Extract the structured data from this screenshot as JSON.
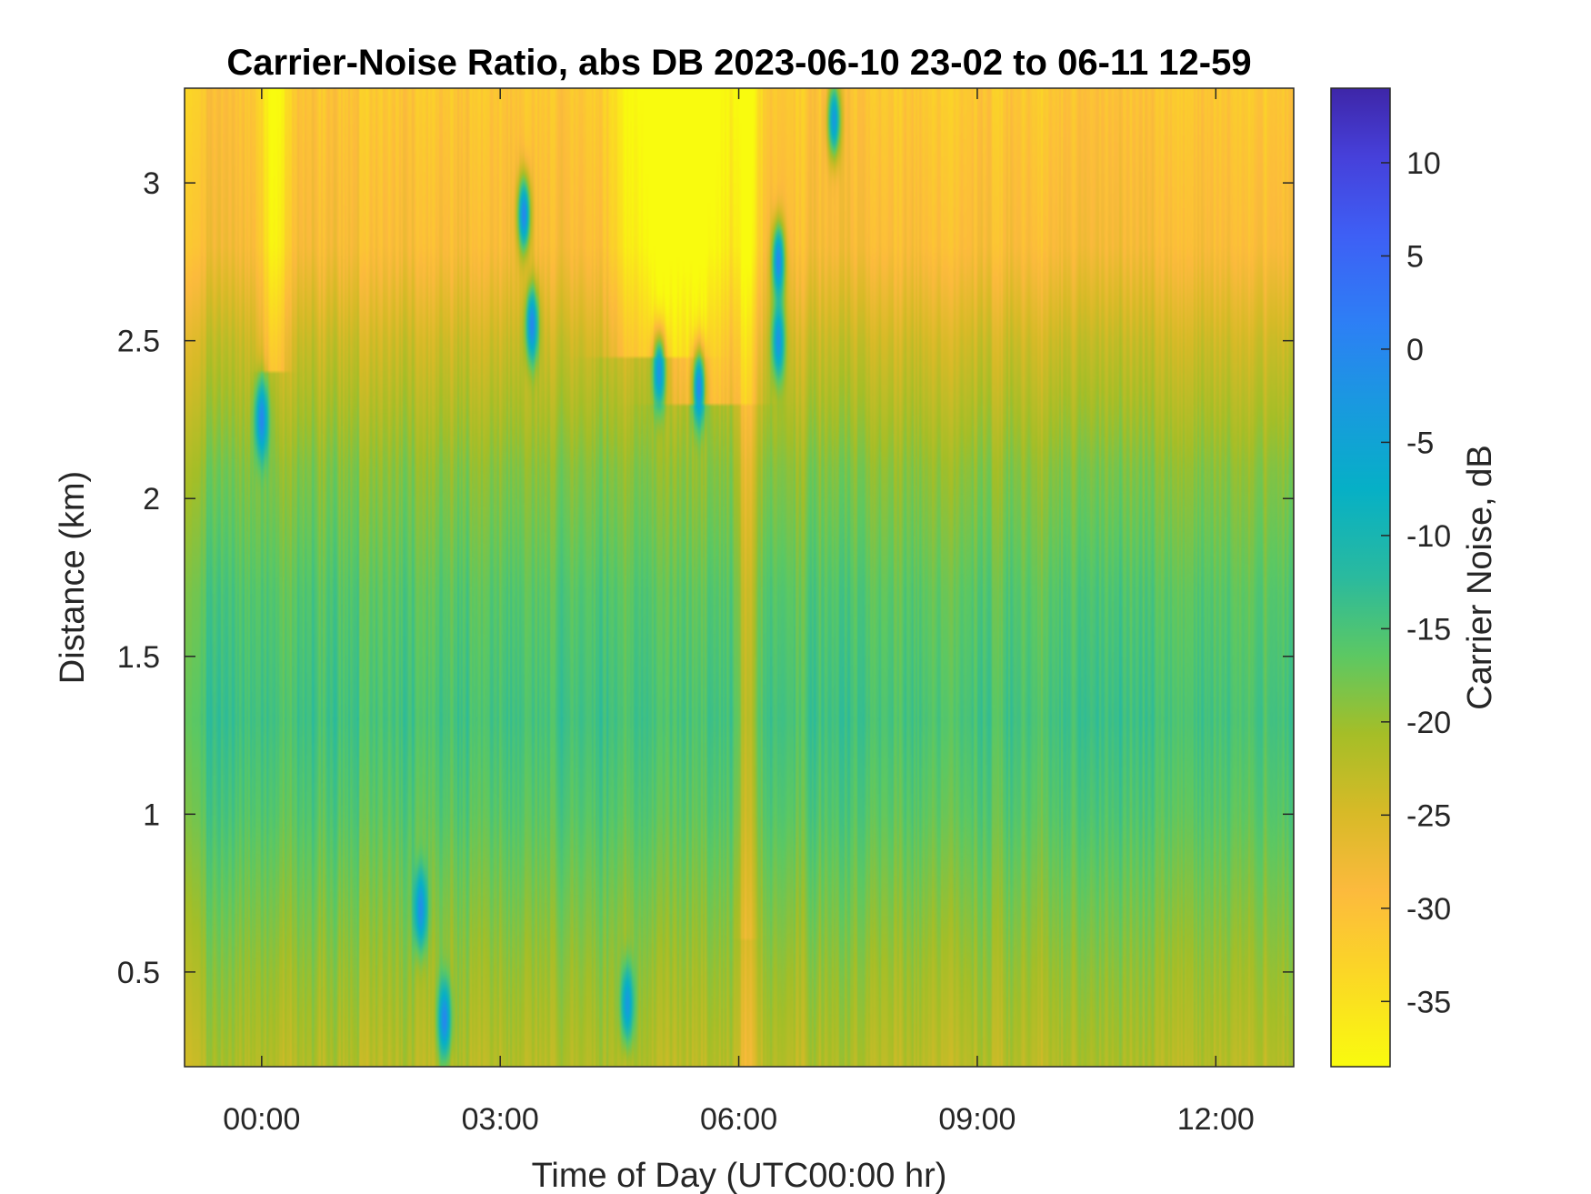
{
  "chart_data": {
    "type": "heatmap",
    "title": "Carrier-Noise Ratio, abs DB 2023-06-10 23-02 to 06-11 12-59",
    "xlabel": "Time of Day (UTC00:00 hr)",
    "ylabel": "Distance (km)",
    "colorbar_label": "Carrier Noise, dB",
    "xlim_hours": [
      -0.97,
      12.98
    ],
    "ylim_km": [
      0.2,
      3.3
    ],
    "clim_db": [
      -38.5,
      14
    ],
    "x_ticks": [
      {
        "value": 0,
        "label": "00:00"
      },
      {
        "value": 3,
        "label": "03:00"
      },
      {
        "value": 6,
        "label": "06:00"
      },
      {
        "value": 9,
        "label": "09:00"
      },
      {
        "value": 12,
        "label": "12:00"
      }
    ],
    "y_ticks": [
      {
        "value": 0.5,
        "label": "0.5"
      },
      {
        "value": 1,
        "label": "1"
      },
      {
        "value": 1.5,
        "label": "1.5"
      },
      {
        "value": 2,
        "label": "2"
      },
      {
        "value": 2.5,
        "label": "2.5"
      },
      {
        "value": 3,
        "label": "3"
      }
    ],
    "colorbar_ticks": [
      {
        "value": 10,
        "label": "10"
      },
      {
        "value": 5,
        "label": "5"
      },
      {
        "value": 0,
        "label": "0"
      },
      {
        "value": -5,
        "label": "-5"
      },
      {
        "value": -10,
        "label": "-10"
      },
      {
        "value": -15,
        "label": "-15"
      },
      {
        "value": -20,
        "label": "-20"
      },
      {
        "value": -25,
        "label": "-25"
      },
      {
        "value": -30,
        "label": "-30"
      },
      {
        "value": -35,
        "label": "-35"
      }
    ],
    "colormap": "parula_reversed",
    "grid": false,
    "legend": "colorbar-right",
    "approx_field": {
      "base_profile_km_db": [
        [
          0.2,
          -22
        ],
        [
          0.5,
          -20
        ],
        [
          1.0,
          -16
        ],
        [
          1.3,
          -14.5
        ],
        [
          1.7,
          -16
        ],
        [
          2.1,
          -19
        ],
        [
          2.5,
          -24
        ],
        [
          2.8,
          -29
        ],
        [
          3.3,
          -31
        ]
      ],
      "clear_columns": [
        {
          "t": 0.15,
          "width_hours": 0.15,
          "top_km": 2.4
        },
        {
          "t": 4.9,
          "width_hours": 0.5,
          "top_km": 2.45
        },
        {
          "t": 5.6,
          "width_hours": 0.5,
          "top_km": 2.3
        },
        {
          "t": 6.1,
          "width_hours": 0.12,
          "top_km": 0.6
        }
      ],
      "strong_returns": [
        {
          "t": 0.0,
          "distance_km": 2.25,
          "value_db": 0
        },
        {
          "t": 3.3,
          "distance_km": 2.9,
          "value_db": 0
        },
        {
          "t": 3.4,
          "distance_km": 2.55,
          "value_db": 0
        },
        {
          "t": 5.0,
          "distance_km": 2.4,
          "value_db": -2
        },
        {
          "t": 5.5,
          "distance_km": 2.35,
          "value_db": 0
        },
        {
          "t": 6.5,
          "distance_km": 2.5,
          "value_db": -2
        },
        {
          "t": 6.5,
          "distance_km": 2.75,
          "value_db": 0
        },
        {
          "t": 7.2,
          "distance_km": 3.2,
          "value_db": -3
        },
        {
          "t": 2.0,
          "distance_km": 0.7,
          "value_db": -1
        },
        {
          "t": 2.3,
          "distance_km": 0.35,
          "value_db": 0
        },
        {
          "t": 4.6,
          "distance_km": 0.4,
          "value_db": -3
        }
      ]
    }
  }
}
